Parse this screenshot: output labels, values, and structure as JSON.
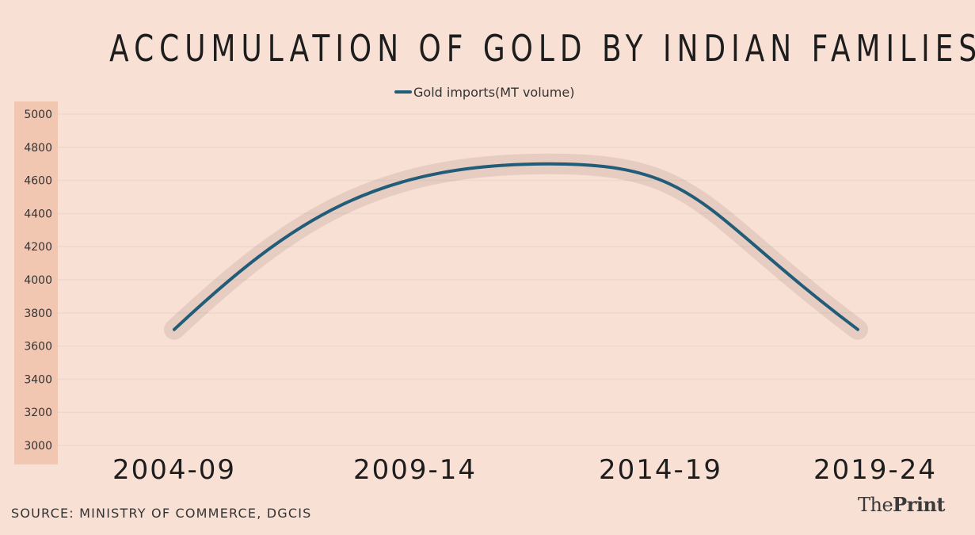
{
  "brand": {
    "part1": "The",
    "part2": "Print"
  },
  "source": "SOURCE: MINISTRY OF COMMERCE, DGCIS",
  "colors": {
    "background": "#f9e0d5",
    "axis_strip": "#f2c7b2",
    "line": "#215c79",
    "grid": "#ecd8cf"
  },
  "chart_data": {
    "type": "line",
    "title": "ACCUMULATION OF GOLD BY INDIAN FAMILIES",
    "categories": [
      "2004-09",
      "2009-14",
      "2014-19",
      "2019-24"
    ],
    "series": [
      {
        "name": "Gold imports(MT volume)",
        "values": [
          3700,
          4500,
          4550,
          3700
        ]
      }
    ],
    "peak": {
      "x": 1.55,
      "y": 4700
    },
    "yticks": [
      5000,
      4800,
      4600,
      4400,
      4200,
      4000,
      3800,
      3600,
      3400,
      3200,
      3000
    ],
    "ylim": [
      3000,
      5000
    ],
    "xlabel": "",
    "ylabel": "",
    "legend": "top-center",
    "grid": true
  }
}
